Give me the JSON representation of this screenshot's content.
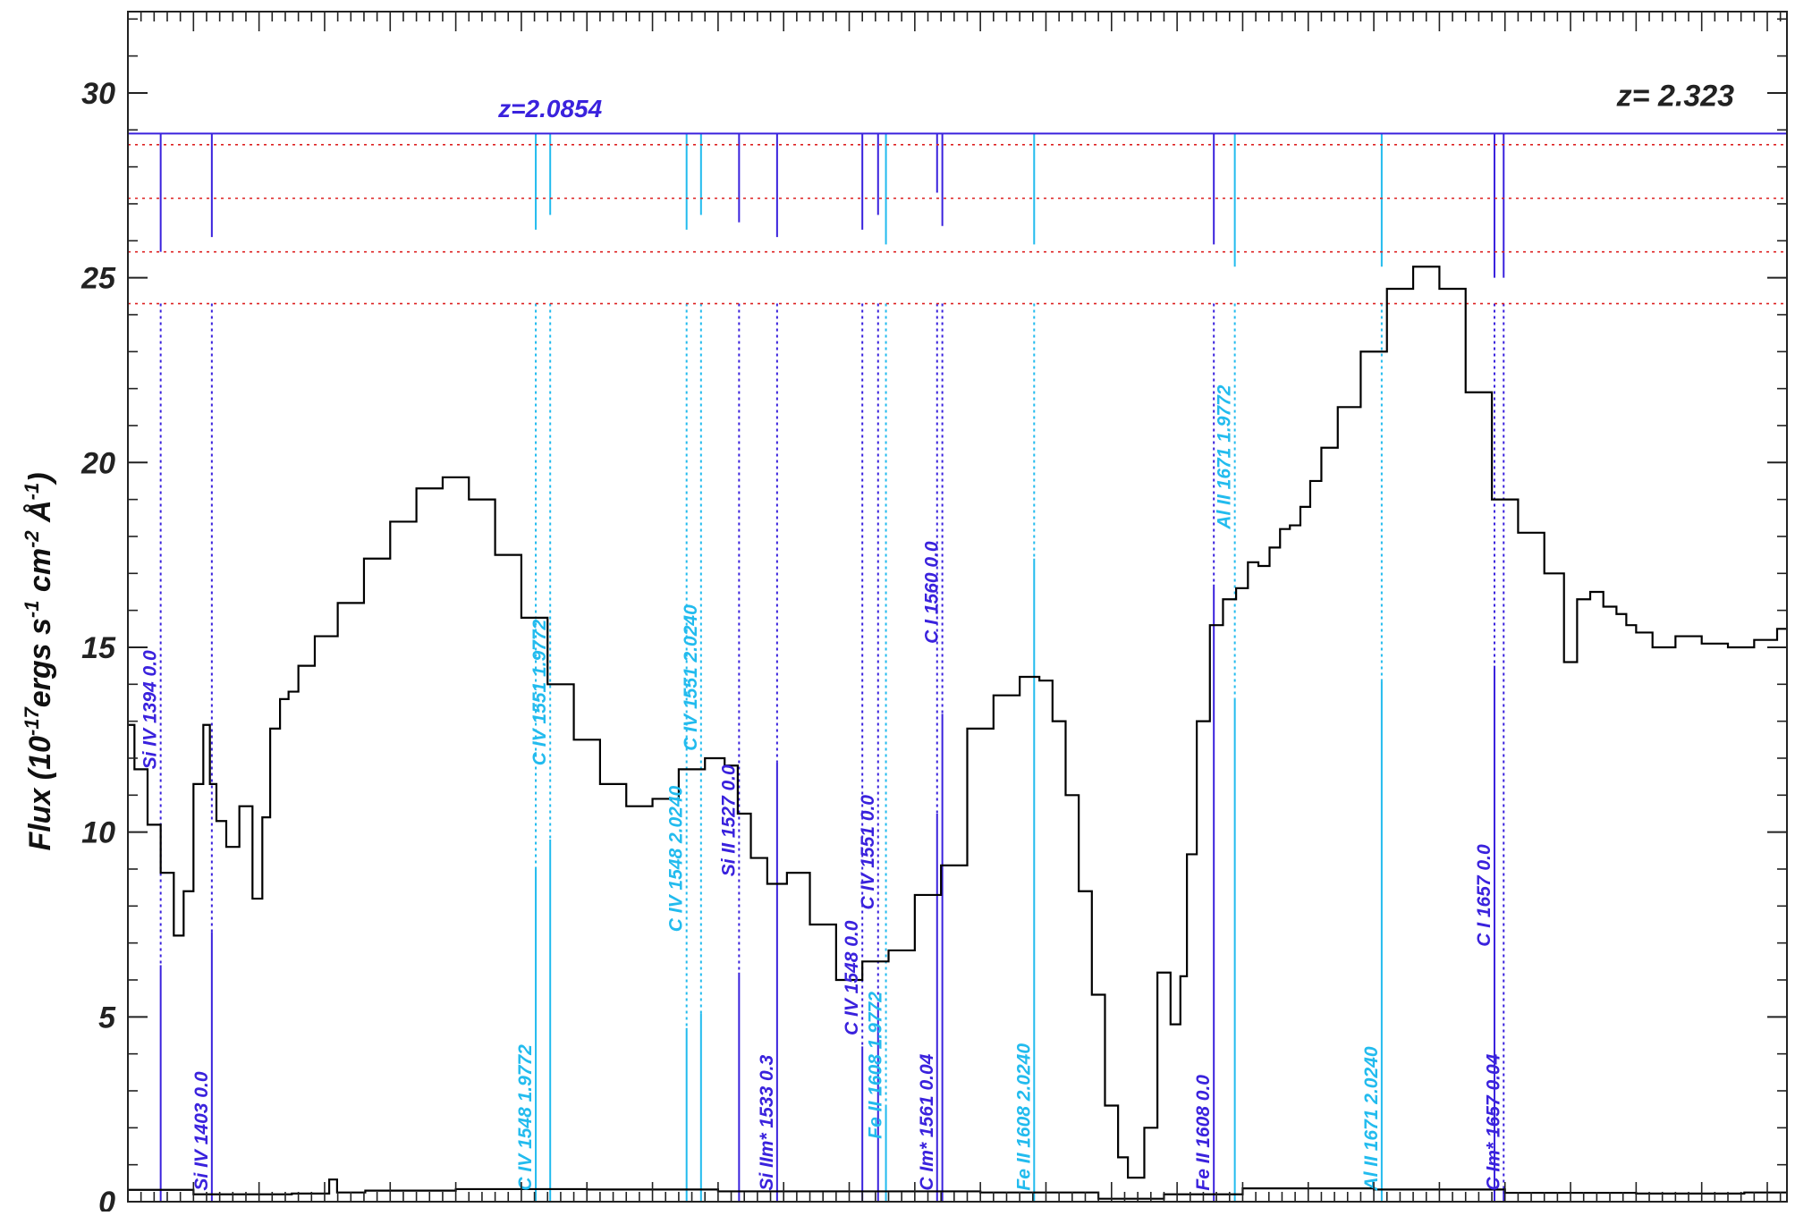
{
  "chart_data": {
    "type": "line",
    "title": "",
    "ylabel_parts": {
      "prefix": "Flux (10",
      "exp1": "-17",
      "mid1": "ergs s",
      "exp2": "-1",
      "mid2": " cm",
      "exp3": "-2",
      "mid3": " Å",
      "exp4": "-1",
      "suffix": ")"
    },
    "xlabel": "",
    "xlim": [
      4300,
      5565
    ],
    "ylim": [
      0,
      32.2
    ],
    "yticks": [
      0,
      5,
      10,
      15,
      20,
      25,
      30
    ],
    "grid": false,
    "colors": {
      "flux": "#000000",
      "system_a": "#3a22dd",
      "system_b": "#22bbee",
      "reference": "#dd2222"
    },
    "redshift_labels": [
      {
        "text": "z=2.0854",
        "color": "#3a22dd",
        "x": 4622,
        "y": 29.35
      },
      {
        "text": "z= 2.323",
        "color": "#222222",
        "x": 5480,
        "y": 29.65
      }
    ],
    "reference_lines": [
      28.9
    ],
    "dotted_levels": [
      28.6,
      27.15,
      25.7,
      24.3
    ],
    "series": [
      {
        "name": "",
        "x": [
          4300,
          4310,
          4320,
          4330,
          4340,
          4345,
          4355,
          4360,
          4365,
          4370,
          4380,
          4390,
          4400,
          4405,
          4412,
          4420,
          4425,
          4435,
          4450,
          4470,
          4490,
          4510,
          4530,
          4550,
          4570,
          4590,
          4610,
          4630,
          4650,
          4670,
          4690,
          4710,
          4730,
          4750,
          4760,
          4770,
          4780,
          4795,
          4810,
          4830,
          4850,
          4870,
          4890,
          4910,
          4930,
          4950,
          4970,
          4990,
          5000,
          5010,
          5020,
          5030,
          5040,
          5050,
          5060,
          5065,
          5070,
          5080,
          5090,
          5100,
          5105,
          5110,
          5120,
          5130,
          5140,
          5150,
          5158,
          5166,
          5175,
          5182,
          5190,
          5198,
          5205,
          5215,
          5230,
          5250,
          5270,
          5290,
          5310,
          5330,
          5350,
          5370,
          5390,
          5400,
          5410,
          5420,
          5430,
          5440,
          5445,
          5455,
          5470,
          5490,
          5510,
          5530,
          5550,
          5565
        ],
        "y": [
          12.9,
          11.7,
          10.2,
          8.9,
          7.2,
          8.4,
          11.3,
          12.9,
          11.3,
          10.3,
          9.6,
          10.7,
          8.2,
          10.4,
          12.8,
          13.6,
          13.8,
          14.5,
          15.3,
          16.2,
          17.4,
          18.4,
          19.3,
          19.6,
          19.0,
          17.5,
          15.8,
          14.0,
          12.5,
          11.3,
          10.7,
          10.9,
          11.7,
          12.0,
          11.8,
          10.5,
          9.3,
          8.6,
          8.9,
          7.5,
          6.0,
          6.5,
          6.8,
          8.3,
          9.1,
          12.8,
          13.7,
          14.2,
          14.1,
          13.0,
          11.0,
          8.4,
          5.6,
          2.6,
          1.2,
          0.65,
          0.65,
          2.0,
          6.2,
          4.8,
          6.1,
          9.4,
          13.0,
          15.6,
          16.3,
          16.6,
          17.3,
          17.2,
          17.7,
          18.2,
          18.3,
          18.8,
          19.5,
          20.4,
          21.5,
          23.0,
          24.7,
          25.3,
          24.7,
          21.9,
          19.0,
          18.1,
          17.0,
          14.6,
          16.3,
          16.5,
          16.1,
          15.9,
          15.6,
          15.4,
          15.0,
          15.3,
          15.1,
          15.0,
          15.2,
          15.5
        ]
      },
      {
        "name": "",
        "x": [
          4300,
          4400,
          4450,
          4457,
          4462,
          4500,
          4600,
          4700,
          4800,
          4900,
          5000,
          5080,
          5100,
          5200,
          5300,
          5400,
          5500,
          5565
        ],
        "y": [
          0.32,
          0.2,
          0.22,
          0.6,
          0.25,
          0.3,
          0.34,
          0.33,
          0.28,
          0.28,
          0.25,
          0.08,
          0.2,
          0.36,
          0.33,
          0.24,
          0.22,
          0.25
        ]
      }
    ],
    "line_markers": [
      {
        "label": "Si IV 1394 0.0",
        "x": 4325,
        "color": "#3a22dd",
        "top": 25.7,
        "bottom": 6.4,
        "text_y": 11.7
      },
      {
        "label": "Si IV 1403 0.0",
        "x": 4364,
        "color": "#3a22dd",
        "top": 26.1,
        "bottom": 7.3,
        "text_y": 0.3
      },
      {
        "label": "C IV 1548 1.9772",
        "x": 4611,
        "color": "#22bbee",
        "top": 26.3,
        "bottom": 9.0,
        "text_y": 0.3
      },
      {
        "label": "C IV 1551 1.9772",
        "x": 4622,
        "color": "#22bbee",
        "top": 26.7,
        "bottom": 9.8,
        "text_y": 11.8
      },
      {
        "label": "C IV 1548 2.0240",
        "x": 4726,
        "color": "#22bbee",
        "top": 26.3,
        "bottom": 4.7,
        "text_y": 7.3
      },
      {
        "label": "C IV 1551 2.0240",
        "x": 4737,
        "color": "#22bbee",
        "top": 26.7,
        "bottom": 5.1,
        "text_y": 12.2
      },
      {
        "label": "Si II 1527 0.0",
        "x": 4766,
        "color": "#3a22dd",
        "top": 26.5,
        "bottom": 6.2,
        "text_y": 8.8
      },
      {
        "label": "Si IIm* 1533 0.3",
        "x": 4795,
        "color": "#3a22dd",
        "top": 26.1,
        "bottom": 11.9,
        "text_y": 0.3
      },
      {
        "label": "C IV 1548 0.0",
        "x": 4860,
        "color": "#3a22dd",
        "top": 26.3,
        "bottom": 4.2,
        "text_y": 4.5
      },
      {
        "label": "C IV 1551 0.0",
        "x": 4872,
        "color": "#3a22dd",
        "top": 26.7,
        "bottom": 5.4,
        "text_y": 7.9
      },
      {
        "label": "Fe II 1608 1.9772",
        "x": 4878,
        "color": "#22bbee",
        "top": 25.9,
        "bottom": 2.6,
        "text_y": 1.7
      },
      {
        "label": "C Im* 1561 0.04",
        "x": 4917,
        "color": "#3a22dd",
        "top": 27.3,
        "bottom": 10.5,
        "text_y": 0.3
      },
      {
        "label": "C I 1560 0.0",
        "x": 4921,
        "color": "#3a22dd",
        "top": 26.4,
        "bottom": 13.2,
        "text_y": 15.1
      },
      {
        "label": "Fe II 1608 2.0240",
        "x": 4991,
        "color": "#22bbee",
        "top": 25.9,
        "bottom": 17.4,
        "text_y": 0.3
      },
      {
        "label": "Fe II 1608 0.0",
        "x": 5128,
        "color": "#3a22dd",
        "top": 25.9,
        "bottom": 16.7,
        "text_y": 0.3
      },
      {
        "label": "Al II 1671 1.9772",
        "x": 5144,
        "color": "#22bbee",
        "top": 25.3,
        "bottom": 13.6,
        "text_y": 18.2
      },
      {
        "label": "Al II 1671 2.0240",
        "x": 5256,
        "color": "#22bbee",
        "top": 25.3,
        "bottom": 14.1,
        "text_y": 0.3
      },
      {
        "label": "C I 1657 0.0",
        "x": 5342,
        "color": "#3a22dd",
        "top": 25.0,
        "bottom": 14.5,
        "text_y": 6.9
      },
      {
        "label": "C Im* 1657 0.04",
        "x": 5349,
        "color": "#3a22dd",
        "top": 25.0,
        "bottom": 0.3,
        "text_y": 0.3
      }
    ]
  }
}
